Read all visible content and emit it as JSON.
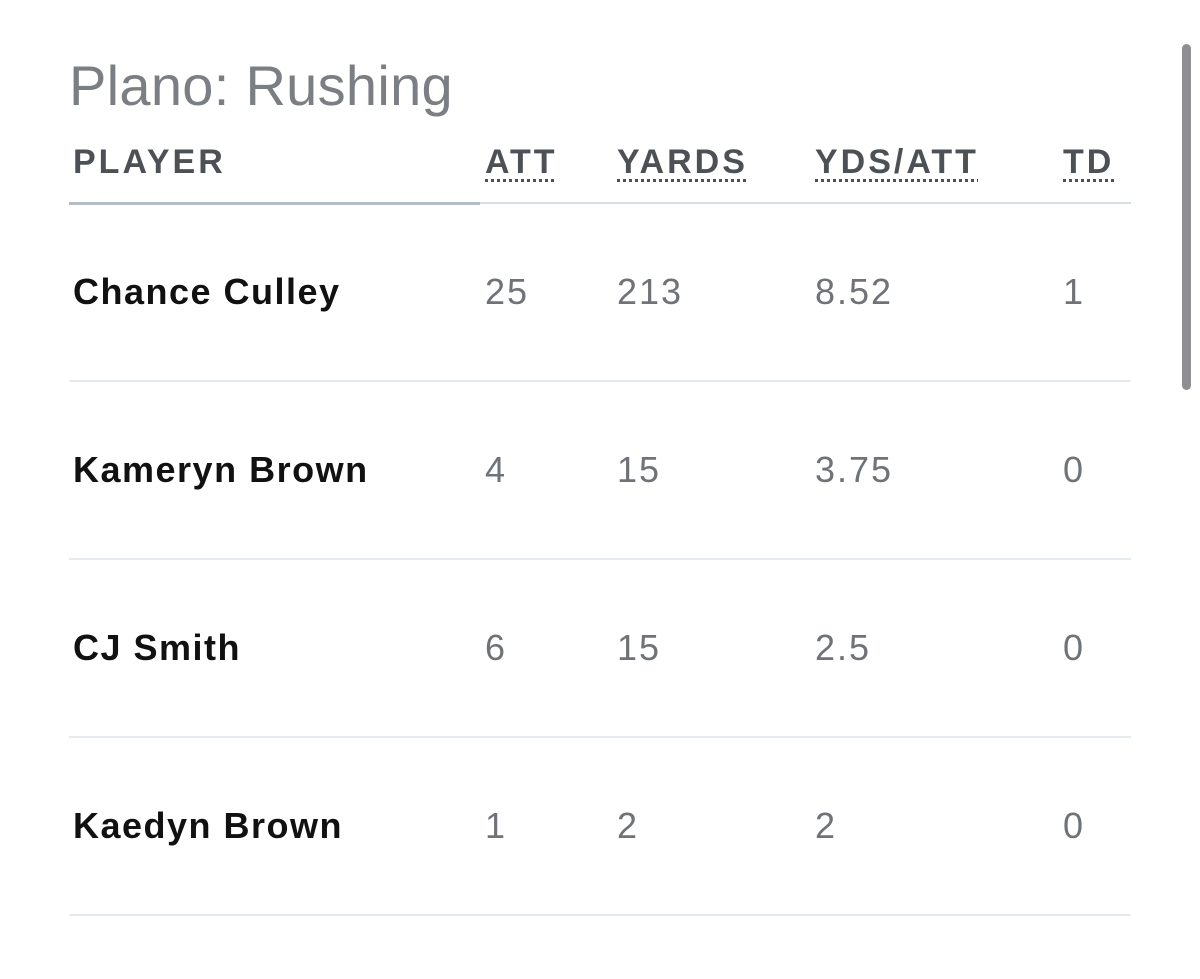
{
  "page": {
    "title": "Plano: Rushing"
  },
  "table": {
    "headers": {
      "player": "PLAYER",
      "att": "ATT",
      "yards": "YARDS",
      "ypa": "YDS/ATT",
      "td": "TD"
    },
    "rows": [
      {
        "player": "Chance Culley",
        "att": "25",
        "yards": "213",
        "ypa": "8.52",
        "td": "1"
      },
      {
        "player": "Kameryn Brown",
        "att": "4",
        "yards": "15",
        "ypa": "3.75",
        "td": "0"
      },
      {
        "player": "CJ Smith",
        "att": "6",
        "yards": "15",
        "ypa": "2.5",
        "td": "0"
      },
      {
        "player": "Kaedyn Brown",
        "att": "1",
        "yards": "2",
        "ypa": "2",
        "td": "0"
      }
    ]
  },
  "colors": {
    "title": "#7b7f84",
    "header_text": "#4d5156",
    "player_text": "#111111",
    "number_text": "#6f7378",
    "row_divider": "#e5eaee",
    "scrollbar": "#8e8e93"
  }
}
